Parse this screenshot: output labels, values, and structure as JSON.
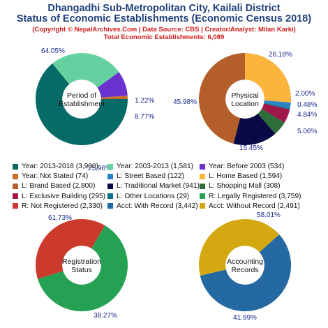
{
  "header": {
    "title_line1": "Dhangadhi Sub-Metropolitan City, Kailali District",
    "title_line2": "Status of Economic Establishments (Economic Census 2018)",
    "copyright": "(Copyright © NepalArchives.Com | Data Source: CBS | Creator/Analyst: Milan Karki)",
    "total": "Total Economic Establishments: 6,089"
  },
  "chart_data": [
    {
      "type": "pie",
      "center_label": [
        "Period of",
        "Establishment"
      ],
      "slices": [
        {
          "name": "Year: 2013-2018",
          "value": 3900,
          "percent_label": "64.05%",
          "color": "#066a66"
        },
        {
          "name": "Year: 2003-2013",
          "value": 1581,
          "percent_label": "25.96%",
          "color": "#66d1a0"
        },
        {
          "name": "Year: Before 2003",
          "value": 534,
          "percent_label": "8.77%",
          "color": "#6a33cf"
        },
        {
          "name": "Year: Not Stated",
          "value": 74,
          "percent_label": "1.22%",
          "color": "#c8702a"
        }
      ]
    },
    {
      "type": "pie",
      "center_label": [
        "Physical",
        "Location"
      ],
      "slices": [
        {
          "name": "L: Home Based",
          "value": 1594,
          "percent_label": "26.18%",
          "color": "#fbb43c"
        },
        {
          "name": "L: Street Based",
          "value": 122,
          "percent_label": "2.00%",
          "color": "#2a84c6"
        },
        {
          "name": "L: Other Locations",
          "value": 29,
          "percent_label": "0.48%",
          "color": "#0c6f8f"
        },
        {
          "name": "L: Exclusive Building",
          "value": 295,
          "percent_label": "4.84%",
          "color": "#a0184a"
        },
        {
          "name": "L: Shopping Mall",
          "value": 308,
          "percent_label": "5.06%",
          "color": "#2e6e3b"
        },
        {
          "name": "L: Traditional Market",
          "value": 941,
          "percent_label": "15.45%",
          "color": "#0a0a46"
        },
        {
          "name": "L: Brand Based",
          "value": 2800,
          "percent_label": "45.98%",
          "color": "#b45e2a"
        }
      ]
    },
    {
      "type": "pie",
      "center_label": [
        "Registration",
        "Status"
      ],
      "slices": [
        {
          "name": "R: Legally Registered",
          "value": 3759,
          "percent_label": "61.73%",
          "color": "#24a152"
        },
        {
          "name": "R: Not Registered",
          "value": 2330,
          "percent_label": "38.27%",
          "color": "#cc3a2c"
        }
      ]
    },
    {
      "type": "pie",
      "center_label": [
        "Accounting",
        "Records"
      ],
      "slices": [
        {
          "name": "Acct: With Record",
          "value": 3442,
          "percent_label": "58.01%",
          "color": "#2569a2"
        },
        {
          "name": "Acct: Without Record",
          "value": 2491,
          "percent_label": "41.99%",
          "color": "#d5a812"
        }
      ]
    }
  ],
  "legend": [
    {
      "label": "Year: 2013-2018 (3,900)",
      "color": "#066a66"
    },
    {
      "label": "Year: 2003-2013 (1,581)",
      "color": "#66d1a0"
    },
    {
      "label": "Year: Before 2003 (534)",
      "color": "#6a33cf"
    },
    {
      "label": "Year: Not Stated (74)",
      "color": "#c8702a"
    },
    {
      "label": "L: Street Based (122)",
      "color": "#2a84c6"
    },
    {
      "label": "L: Home Based (1,594)",
      "color": "#fbb43c"
    },
    {
      "label": "L: Brand Based (2,800)",
      "color": "#b45e2a"
    },
    {
      "label": "L: Traditional Market (941)",
      "color": "#0a0a46"
    },
    {
      "label": "L: Shopping Mall (308)",
      "color": "#2e6e3b"
    },
    {
      "label": "L: Exclusive Building (295)",
      "color": "#a0184a"
    },
    {
      "label": "L: Other Locations (29)",
      "color": "#0c6f8f"
    },
    {
      "label": "R: Legally Registered (3,759)",
      "color": "#24a152"
    },
    {
      "label": "R: Not Registered (2,330)",
      "color": "#cc3a2c"
    },
    {
      "label": "Acct: With Record (3,442)",
      "color": "#2569a2"
    },
    {
      "label": "Acct: Without Record (2,491)",
      "color": "#d5a812"
    }
  ],
  "colors": {
    "title": "#1f3f7a",
    "copyright": "#d01c1c",
    "percent_label": "#1a2a8c"
  }
}
